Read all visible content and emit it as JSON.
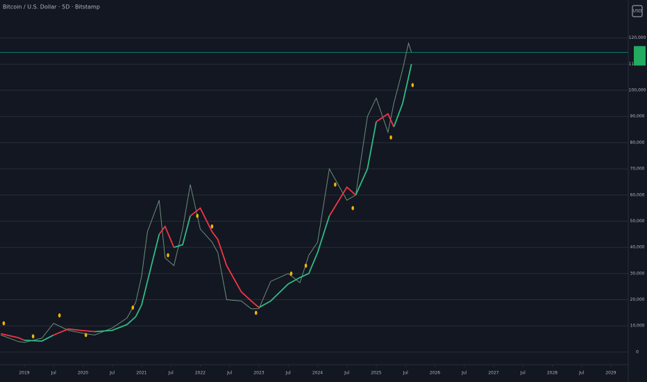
{
  "chart_data": {
    "type": "line",
    "title": "Bitcoin / U.S. Dollar · 5D · Bitstamp",
    "currency": "USD",
    "x": [
      2018.6,
      2018.9,
      2019.0,
      2019.3,
      2019.5,
      2019.75,
      2020.0,
      2020.2,
      2020.5,
      2020.75,
      2020.9,
      2021.0,
      2021.1,
      2021.3,
      2021.4,
      2021.55,
      2021.7,
      2021.83,
      2022.0,
      2022.2,
      2022.3,
      2022.45,
      2022.7,
      2022.87,
      2023.0,
      2023.2,
      2023.5,
      2023.7,
      2023.85,
      2024.0,
      2024.2,
      2024.5,
      2024.65,
      2024.85,
      2025.0,
      2025.2,
      2025.3,
      2025.45,
      2025.55,
      2025.6
    ],
    "series": [
      {
        "color": "#6b8f7a",
        "values": [
          6500,
          4000,
          3700,
          5300,
          11000,
          8300,
          7200,
          6500,
          9200,
          13000,
          19000,
          29000,
          46000,
          58000,
          36000,
          33000,
          47000,
          64000,
          47000,
          42000,
          38000,
          20000,
          19500,
          16500,
          16600,
          27000,
          30000,
          26500,
          37000,
          42000,
          70000,
          58000,
          60000,
          90000,
          97000,
          84000,
          95000,
          108000,
          118000,
          114500
        ]
      },
      {
        "color": "#2ebd85",
        "values": [
          null,
          null,
          4500,
          4200,
          6500,
          null,
          null,
          7800,
          8300,
          10500,
          13500,
          18000,
          27000,
          45000,
          null,
          40000,
          41000,
          52000,
          null,
          null,
          null,
          null,
          null,
          null,
          17000,
          19500,
          26000,
          28500,
          30000,
          38000,
          52000,
          null,
          60000,
          70000,
          88000,
          null,
          86000,
          95000,
          105000,
          110000
        ]
      },
      {
        "color": "#f23645",
        "values": [
          7000,
          5500,
          4500,
          null,
          6500,
          8800,
          8200,
          7800,
          null,
          null,
          null,
          null,
          null,
          45000,
          48000,
          40000,
          null,
          52000,
          55000,
          46000,
          43000,
          33000,
          23000,
          19500,
          17000,
          null,
          null,
          null,
          null,
          null,
          52000,
          63000,
          60000,
          null,
          88000,
          91000,
          86000,
          null,
          null,
          null
        ]
      }
    ],
    "signals": {
      "color": "#f7b500",
      "x": [
        2018.65,
        2019.15,
        2019.6,
        2020.05,
        2020.85,
        2021.45,
        2021.95,
        2022.2,
        2022.95,
        2023.55,
        2023.8,
        2024.3,
        2024.6,
        2025.25,
        2025.62
      ],
      "values": [
        11000,
        6000,
        14000,
        6500,
        17000,
        37000,
        52000,
        48000,
        15000,
        30000,
        33000,
        64000,
        55000,
        82000,
        102000
      ]
    },
    "last_price": 114500,
    "last_price_color": "#089981",
    "xlim": [
      2018.586,
      2029.296
    ],
    "xticks": [
      2019,
      {
        "value": 2019.5,
        "label": "Jul"
      },
      2020,
      {
        "value": 2020.5,
        "label": "Jul"
      },
      2021,
      {
        "value": 2021.5,
        "label": "Jul"
      },
      2022,
      {
        "value": 2022.5,
        "label": "Jul"
      },
      2023,
      {
        "value": 2023.5,
        "label": "Jul"
      },
      2024,
      {
        "value": 2024.5,
        "label": "Jul"
      },
      2025,
      {
        "value": 2025.5,
        "label": "Jul"
      },
      2026,
      {
        "value": 2026.5,
        "label": "Jul"
      },
      2027,
      {
        "value": 2027.5,
        "label": "Jul"
      },
      2028,
      {
        "value": 2028.5,
        "label": "Jul"
      },
      2029
    ],
    "ylim": [
      -4800,
      134500
    ],
    "yticks": [
      0,
      {
        "value": 10000,
        "label": "10,000"
      },
      {
        "value": 20000,
        "label": "20,000"
      },
      {
        "value": 30000,
        "label": "30,000"
      },
      {
        "value": 40000,
        "label": "40,000"
      },
      {
        "value": 50000,
        "label": "50,000"
      },
      {
        "value": 60000,
        "label": "60,000"
      },
      {
        "value": 70000,
        "label": "70,000"
      },
      {
        "value": 80000,
        "label": "80,000"
      },
      {
        "value": 90000,
        "label": "90,000"
      },
      {
        "value": 100000,
        "label": "100,000"
      },
      {
        "value": 110000,
        "label": "110,000"
      },
      {
        "value": 120000,
        "label": "120,000"
      }
    ],
    "grid": true
  }
}
